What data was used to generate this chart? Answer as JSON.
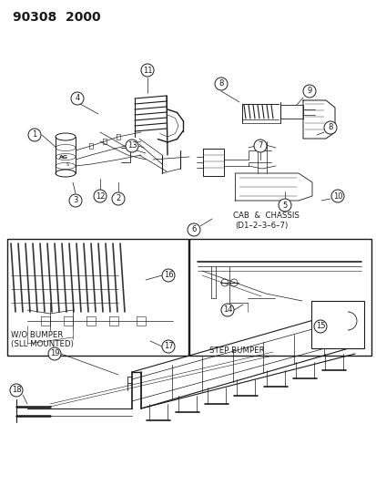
{
  "title": "90308  2000",
  "bg_color": "#ffffff",
  "line_color": "#1a1a1a",
  "title_fontsize": 10,
  "labels": {
    "cab_chassis": "CAB  &  CHASSIS",
    "cab_chassis_sub": "(D1–2–3–6–7)",
    "wo_bumper": "W/O BUMPER",
    "sill_mounted": "(SLL MOUNTED)",
    "step_bumper": "STEP BUMPER"
  },
  "figsize": [
    4.14,
    5.33
  ],
  "dpi": 100
}
